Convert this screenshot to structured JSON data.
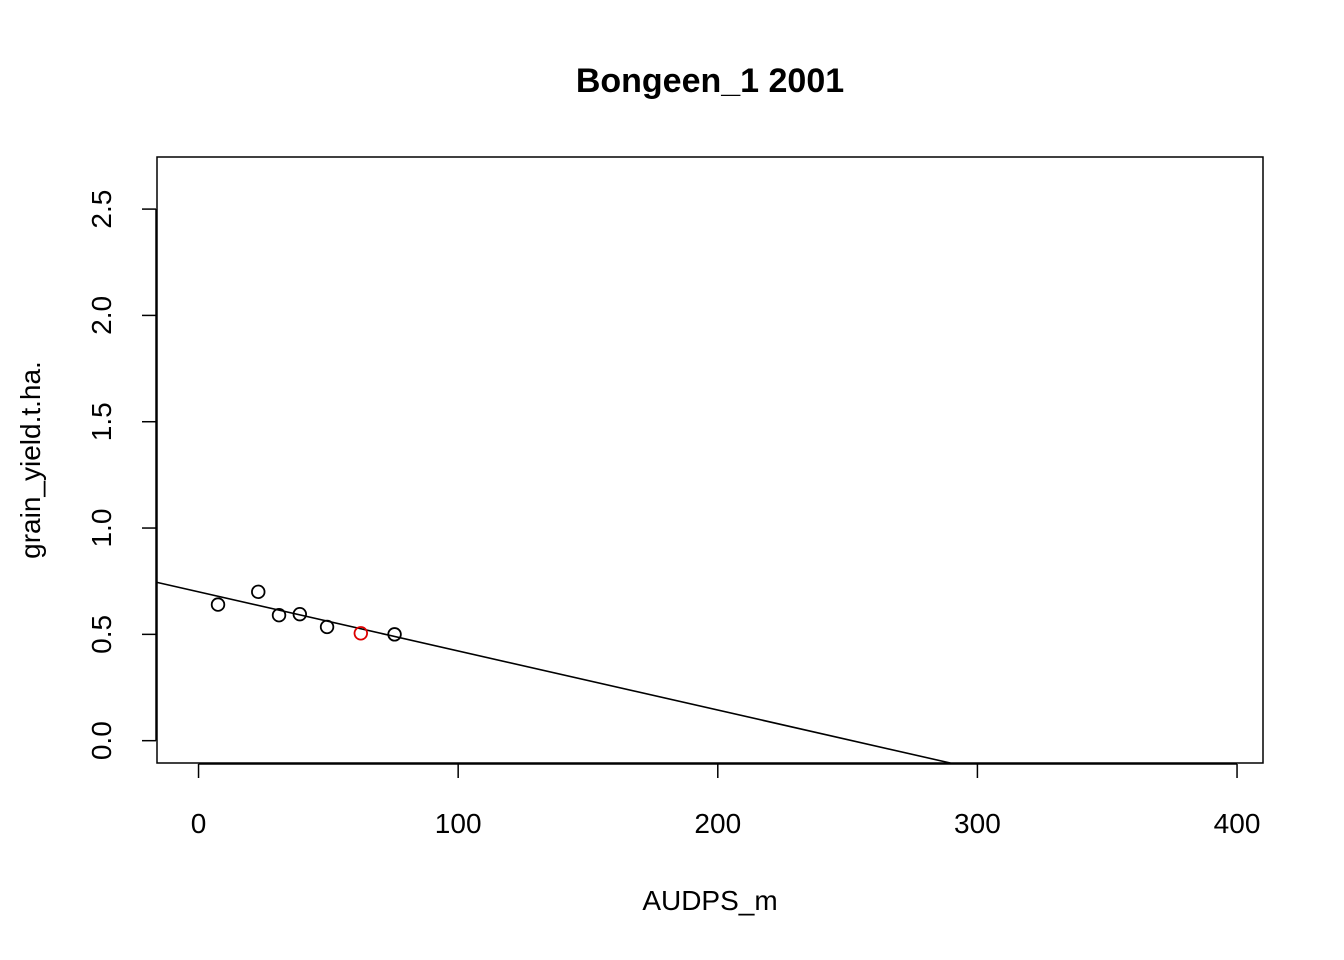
{
  "chart_data": {
    "type": "scatter",
    "title": "Bongeen_1 2001",
    "xlabel": "AUDPS_m",
    "ylabel": "grain_yield.t.ha.",
    "xlim": [
      -16,
      410
    ],
    "ylim": [
      -0.105,
      2.745
    ],
    "xticks": [
      0,
      100,
      200,
      300,
      400
    ],
    "yticks": [
      0.0,
      0.5,
      1.0,
      1.5,
      2.0,
      2.5
    ],
    "xtick_labels": [
      "0",
      "100",
      "200",
      "300",
      "400"
    ],
    "ytick_labels": [
      "0.0",
      "0.5",
      "1.0",
      "1.5",
      "2.0",
      "2.5"
    ],
    "grid": false,
    "series": [
      {
        "color": "#000000",
        "points": [
          {
            "x": 7.5,
            "y": 0.64
          },
          {
            "x": 23,
            "y": 0.7
          },
          {
            "x": 31,
            "y": 0.59
          },
          {
            "x": 39,
            "y": 0.595
          },
          {
            "x": 49.5,
            "y": 0.535
          },
          {
            "x": 75.5,
            "y": 0.5
          }
        ]
      },
      {
        "color": "#dd0000",
        "points": [
          {
            "x": 62.5,
            "y": 0.505
          }
        ]
      }
    ],
    "regression_line": {
      "color": "#000000",
      "intercept": 0.7,
      "slope": -0.00278
    }
  }
}
